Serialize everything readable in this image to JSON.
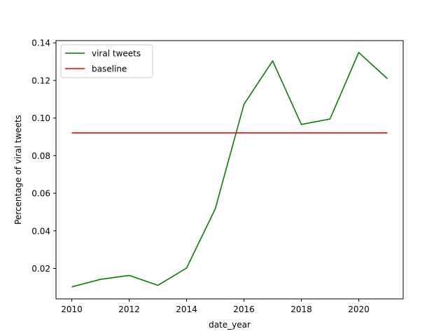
{
  "chart_data": {
    "type": "line",
    "xlabel": "date_year",
    "ylabel": "Percentage of viral tweets",
    "xlim": [
      2009.45,
      2021.55
    ],
    "ylim": [
      0.0038,
      0.1412
    ],
    "xticks": [
      2010,
      2012,
      2014,
      2016,
      2018,
      2020
    ],
    "yticks": [
      0.02,
      0.04,
      0.06,
      0.08,
      0.1,
      0.12,
      0.14
    ],
    "ytick_labels": [
      "0.02",
      "0.04",
      "0.06",
      "0.08",
      "0.10",
      "0.12",
      "0.14"
    ],
    "legend_position": "top-left",
    "grid": false,
    "series": [
      {
        "name": "viral tweets",
        "color": "#008000",
        "x": [
          2010,
          2011,
          2012,
          2013,
          2014,
          2015,
          2016,
          2017,
          2018,
          2019,
          2020,
          2021
        ],
        "y": [
          0.0102,
          0.0142,
          0.0163,
          0.011,
          0.0202,
          0.0517,
          0.1073,
          0.1304,
          0.0966,
          0.0995,
          0.1349,
          0.1209
        ]
      },
      {
        "name": "baseline",
        "color": "#ff0000",
        "x": [
          2010,
          2021
        ],
        "y": [
          0.0921,
          0.0921
        ]
      }
    ]
  }
}
